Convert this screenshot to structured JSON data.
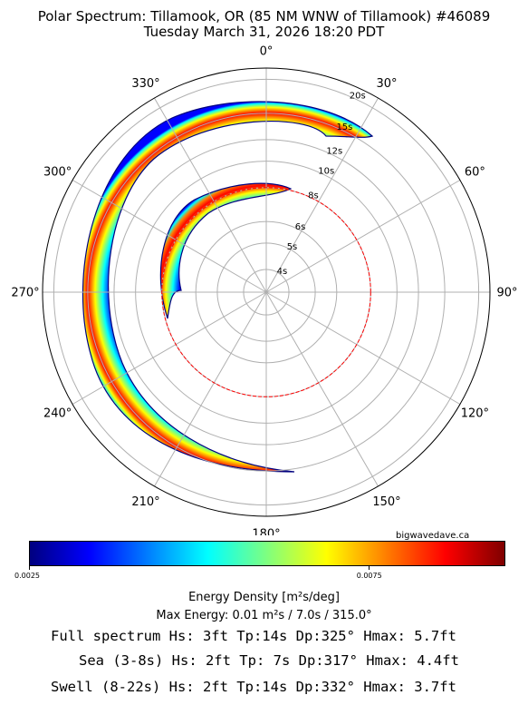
{
  "header": {
    "title_line1": "Polar Spectrum: Tillamook, OR (85 NM WNW of Tillamook) #46089",
    "title_line2": "Tuesday March 31, 2026 18:20 PDT"
  },
  "chart_data": {
    "type": "heatmap",
    "projection": "polar",
    "angle_ticks": [
      "0°",
      "30°",
      "60°",
      "90°",
      "120°",
      "150°",
      "180°",
      "210°",
      "240°",
      "270°",
      "300°",
      "330°"
    ],
    "radial_ticks": [
      {
        "label": "4s",
        "period": 4
      },
      {
        "label": "5s",
        "period": 5
      },
      {
        "label": "6s",
        "period": 6
      },
      {
        "label": "8s",
        "period": 8
      },
      {
        "label": "10s",
        "period": 10
      },
      {
        "label": "12s",
        "period": 12
      },
      {
        "label": "15s",
        "period": 15
      },
      {
        "label": "20s",
        "period": 20
      }
    ],
    "sea_swell_divider_period": 8,
    "energy_regions": [
      {
        "period_min": 5.5,
        "period_max": 8,
        "direction_start": 200,
        "direction_end": 28,
        "peak_direction": 317,
        "peak_period": 7
      },
      {
        "period_min": 12,
        "period_max": 22,
        "direction_start": 174,
        "direction_end": 30,
        "peak_direction": 325,
        "peak_period": 14
      }
    ],
    "colorbar": {
      "colormap": "jet",
      "min": 0.0025,
      "max": 0.0095,
      "ticks": [
        {
          "label": "0.0025",
          "value": 0.0025
        },
        {
          "label": "0.0075",
          "value": 0.0075
        }
      ],
      "colors": [
        "#00007f",
        "#0000ff",
        "#007fff",
        "#00ffff",
        "#7fff7f",
        "#ffff00",
        "#ff7f00",
        "#ff0000",
        "#7f0000"
      ],
      "label": "Energy Density [m²s/deg]"
    },
    "max_energy": "Max Energy: 0.01 m²s  /  7.0s  /  315.0°"
  },
  "credit": "bigwavedave.ca",
  "stats": {
    "full": "Full spectrum Hs: 3ft Tp:14s Dp:325° Hmax: 5.7ft",
    "sea": "Sea (3-8s) Hs: 2ft Tp: 7s Dp:317° Hmax: 4.4ft",
    "swell": "Swell (8-22s) Hs: 2ft Tp:14s Dp:332° Hmax: 3.7ft"
  }
}
